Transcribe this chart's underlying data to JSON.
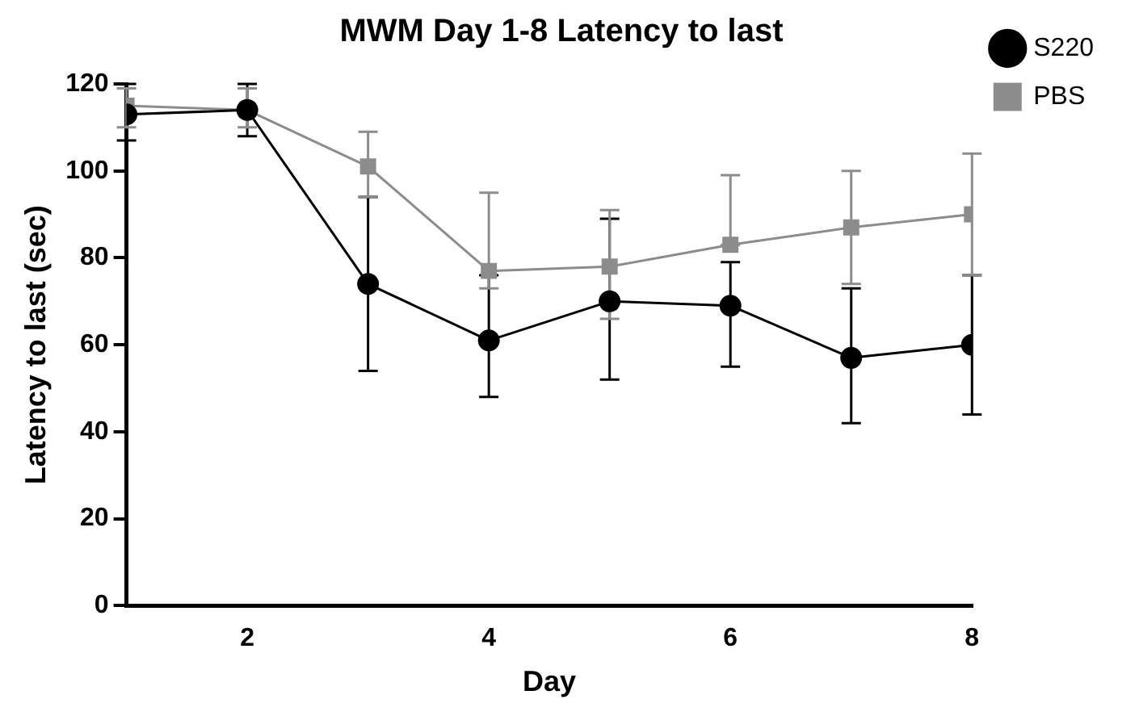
{
  "chart_data": {
    "type": "line",
    "title": "MWM Day 1-8 Latency to last",
    "xlabel": "Day",
    "ylabel": "Latency to last (sec)",
    "x": [
      1,
      2,
      3,
      4,
      5,
      6,
      7,
      8
    ],
    "xlim": [
      1,
      8
    ],
    "xticks": [
      2,
      4,
      6,
      8
    ],
    "ylim": [
      0,
      120
    ],
    "yticks": [
      0,
      20,
      40,
      60,
      80,
      100,
      120
    ],
    "grid": false,
    "legend": "top right",
    "series": [
      {
        "name": "S220",
        "color": "#000000",
        "marker": "circle",
        "values": [
          113,
          114,
          74,
          61,
          70,
          69,
          57,
          60
        ],
        "errors": [
          [
            107,
            120
          ],
          [
            108,
            120
          ],
          [
            54,
            94
          ],
          [
            48,
            76
          ],
          [
            52,
            89
          ],
          [
            55,
            79
          ],
          [
            42,
            73
          ],
          [
            44,
            76
          ]
        ]
      },
      {
        "name": "PBS",
        "color": "#8c8c8c",
        "marker": "square",
        "values": [
          115,
          114,
          101,
          77,
          78,
          83,
          87,
          90
        ],
        "errors": [
          [
            110,
            119
          ],
          [
            110,
            119
          ],
          [
            94,
            109
          ],
          [
            73,
            95
          ],
          [
            66,
            91
          ],
          [
            83,
            99
          ],
          [
            74,
            100
          ],
          [
            76,
            104
          ]
        ]
      }
    ]
  }
}
